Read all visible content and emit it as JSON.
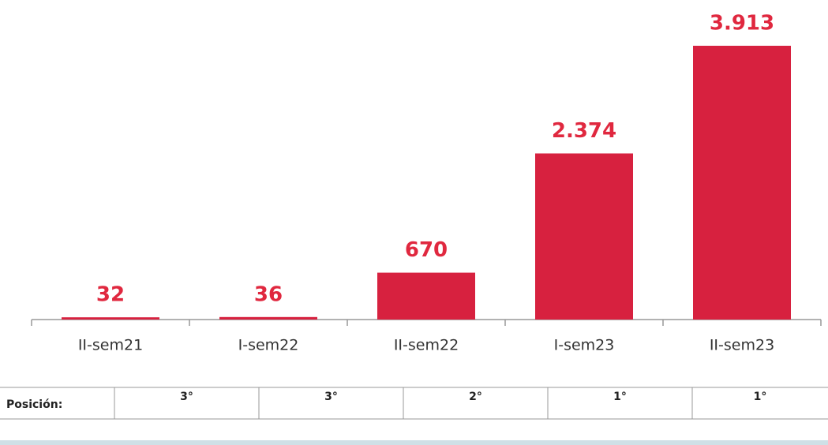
{
  "chart_data": {
    "type": "bar",
    "categories": [
      "II-sem21",
      "I-sem22",
      "II-sem22",
      "I-sem23",
      "II-sem23"
    ],
    "values": [
      32,
      36,
      670,
      2374,
      3913
    ],
    "value_labels": [
      "32",
      "36",
      "670",
      "2.374",
      "3.913"
    ],
    "color": "#d7213f"
  },
  "table": {
    "header": "Posición:",
    "cells": [
      "3°",
      "3°",
      "2°",
      "1°",
      "1°"
    ]
  }
}
